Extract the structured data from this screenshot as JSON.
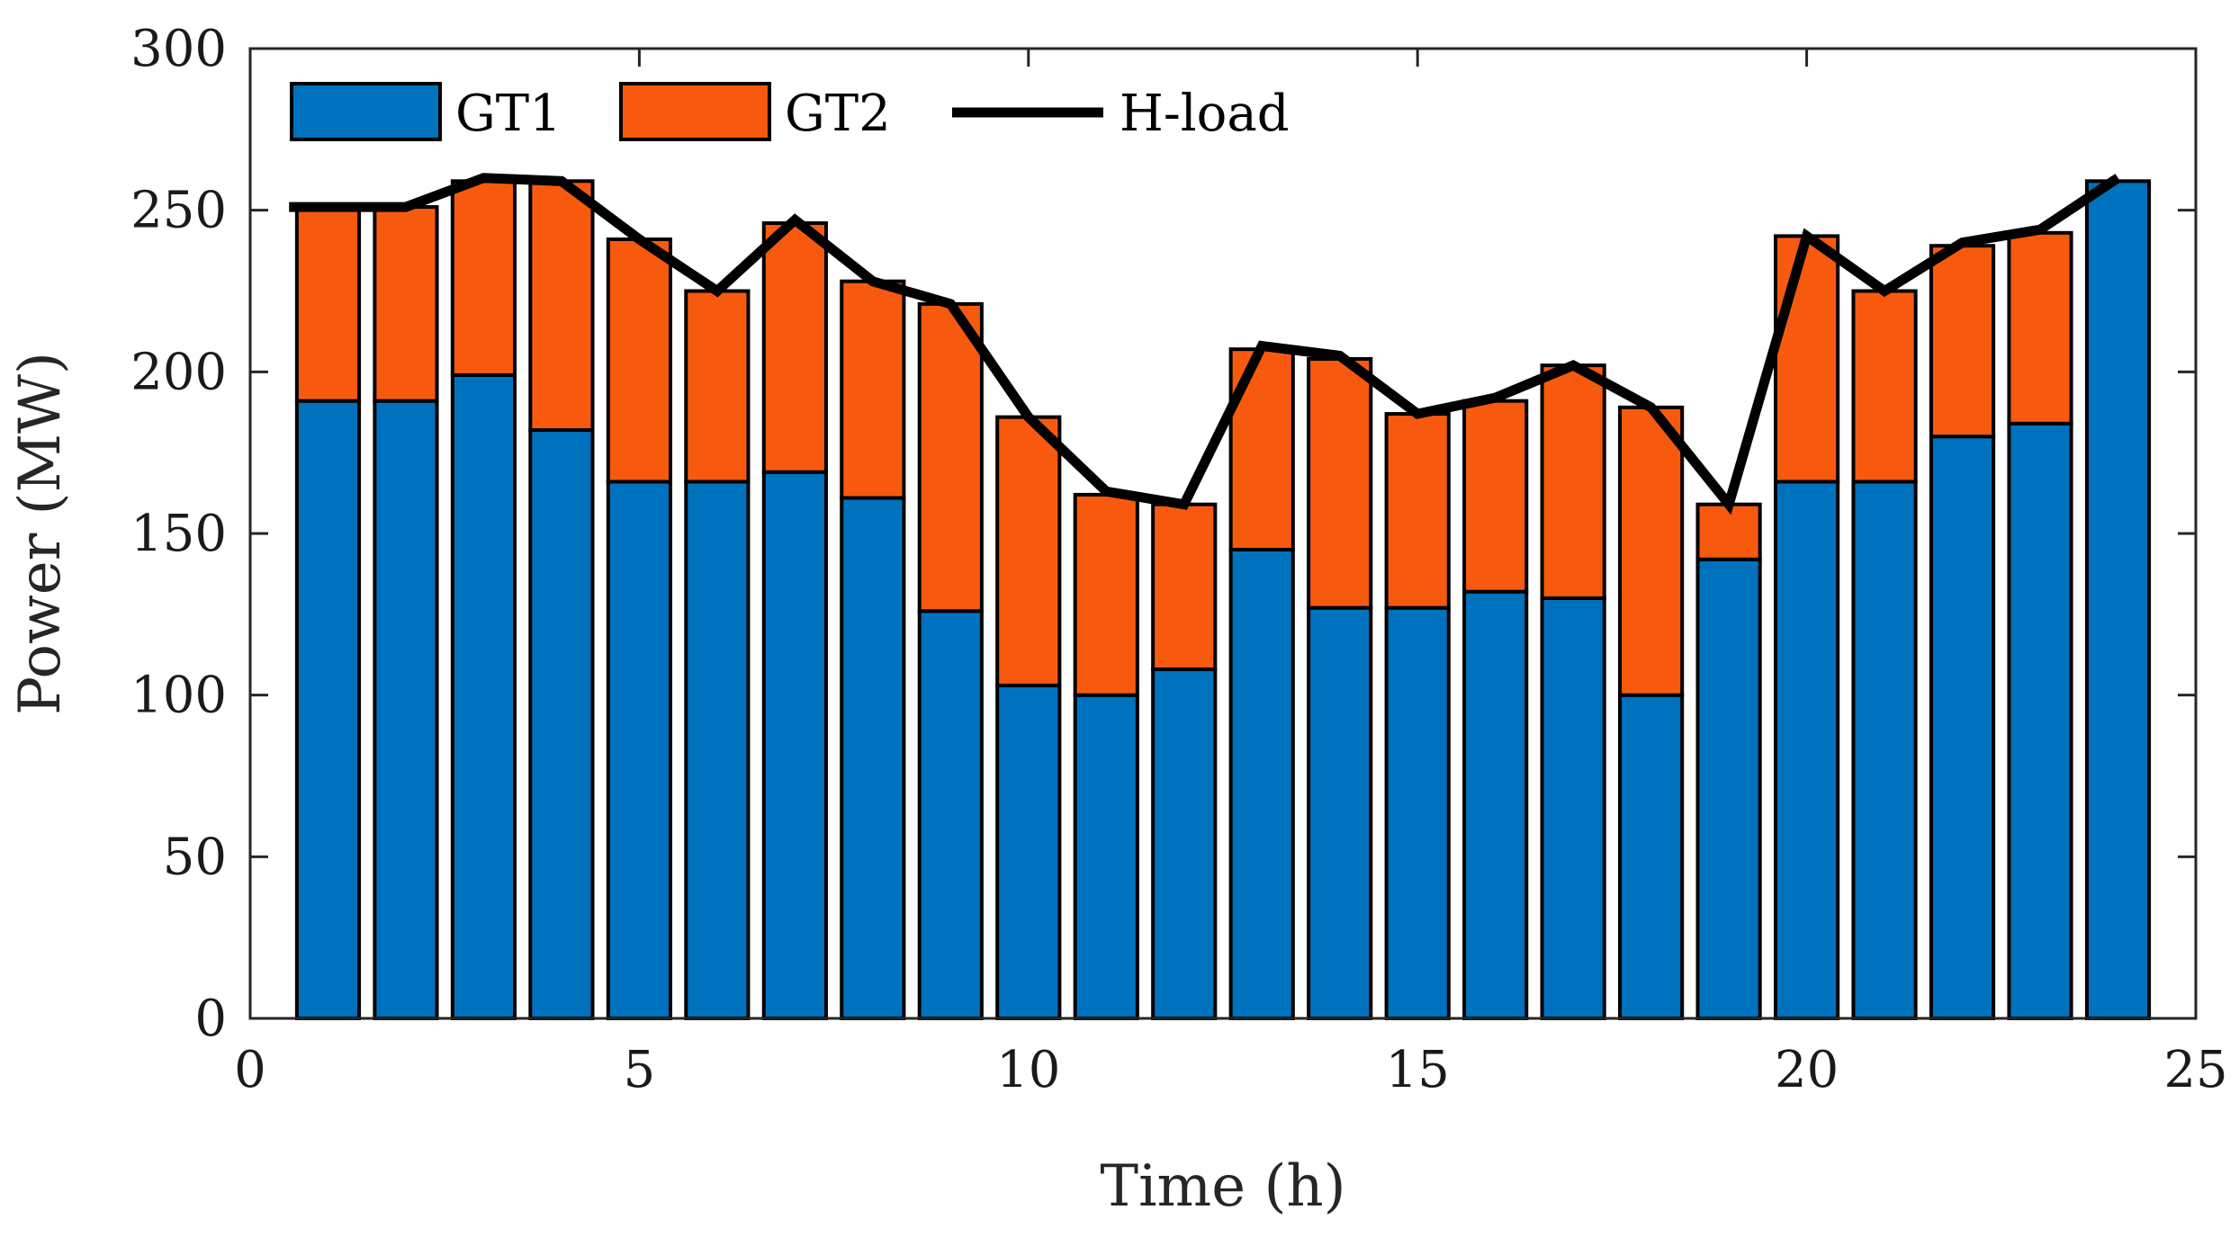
{
  "chart_data": {
    "type": "bar",
    "stacked": true,
    "title": "",
    "xlabel": "Time (h)",
    "ylabel": "Power (MW)",
    "xlim": [
      0,
      25
    ],
    "ylim": [
      0,
      300
    ],
    "xticks": [
      0,
      5,
      10,
      15,
      20,
      25
    ],
    "yticks": [
      0,
      50,
      100,
      150,
      200,
      250,
      300
    ],
    "legend_position": "top-left",
    "x": [
      1,
      2,
      3,
      4,
      5,
      6,
      7,
      8,
      9,
      10,
      11,
      12,
      13,
      14,
      15,
      16,
      17,
      18,
      19,
      20,
      21,
      22,
      23,
      24
    ],
    "series": [
      {
        "name": "GT1",
        "kind": "bar",
        "color": "#0072BD",
        "values": [
          191,
          191,
          199,
          182,
          166,
          166,
          169,
          161,
          126,
          103,
          100,
          108,
          145,
          127,
          127,
          132,
          130,
          100,
          142,
          166,
          166,
          180,
          184,
          259
        ]
      },
      {
        "name": "GT2",
        "kind": "bar",
        "color": "#F75A0E",
        "values": [
          60,
          60,
          60,
          77,
          75,
          59,
          77,
          67,
          95,
          83,
          62,
          51,
          62,
          77,
          60,
          59,
          72,
          89,
          17,
          76,
          59,
          59,
          59,
          0
        ]
      },
      {
        "name": "H-load",
        "kind": "line",
        "color": "#000000",
        "values": [
          251,
          251,
          260,
          259,
          241,
          225,
          247,
          228,
          221,
          186,
          163,
          159,
          208,
          205,
          187,
          192,
          202,
          189,
          159,
          242,
          225,
          240,
          244,
          260
        ]
      }
    ]
  }
}
